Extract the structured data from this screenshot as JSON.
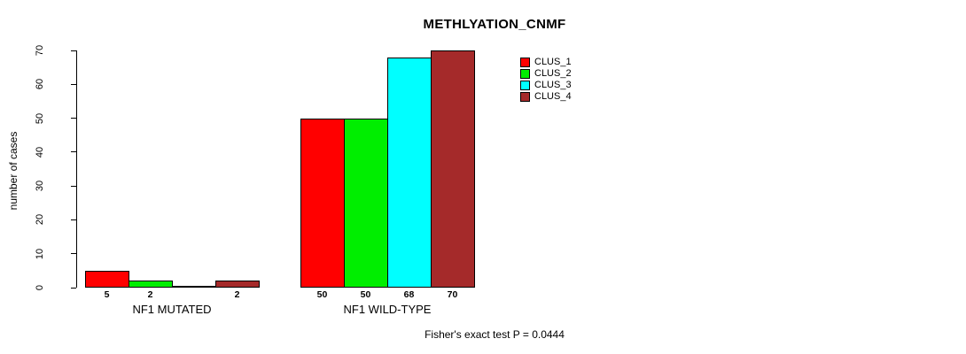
{
  "chart_data": {
    "type": "bar",
    "title": "METHLYATION_CNMF",
    "xlabel": "",
    "ylabel": "number of cases",
    "ylim": [
      0,
      70
    ],
    "yticks": [
      0,
      10,
      20,
      30,
      40,
      50,
      60,
      70
    ],
    "grid": false,
    "legend_position": "top-right",
    "categories": [
      "NF1 MUTATED",
      "NF1 WILD-TYPE"
    ],
    "series": [
      {
        "name": "CLUS_1",
        "color": "#ff0000",
        "values": [
          5,
          50
        ]
      },
      {
        "name": "CLUS_2",
        "color": "#00ee00",
        "values": [
          2,
          50
        ]
      },
      {
        "name": "CLUS_3",
        "color": "#00ffff",
        "values": [
          0,
          68
        ]
      },
      {
        "name": "CLUS_4",
        "color": "#a52a2a",
        "values": [
          2,
          70
        ]
      }
    ],
    "bar_value_labels": [
      [
        "5",
        "2",
        "",
        "2"
      ],
      [
        "50",
        "50",
        "68",
        "70"
      ]
    ]
  },
  "footer": {
    "text": "Fisher's exact test P = 0.0444"
  }
}
